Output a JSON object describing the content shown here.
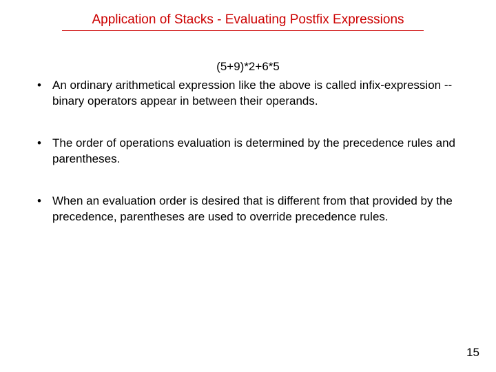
{
  "title": "Application of Stacks - Evaluating Postfix Expressions",
  "expression": "(5+9)*2+6*5",
  "bullets": {
    "b1": "An ordinary arithmetical expression like the above is called infix-expression -- binary operators appear in between their operands.",
    "b2": "The order of operations evaluation  is determined by the precedence rules and parentheses.",
    "b3": "When an evaluation order is desired that is different from that provided by the precedence, parentheses are used to override precedence rules."
  },
  "pageNumber": "15",
  "colors": {
    "title": "#cc0000",
    "body": "#000000",
    "background": "#ffffff"
  },
  "fonts": {
    "title_size": 19,
    "body_size": 17
  }
}
